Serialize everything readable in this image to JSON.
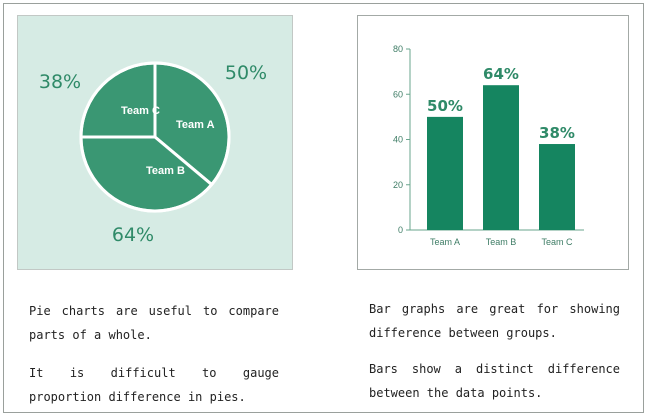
{
  "chart_data": [
    {
      "type": "pie",
      "categories": [
        "Team A",
        "Team B",
        "Team C"
      ],
      "values": [
        50,
        64,
        38
      ],
      "value_labels": [
        "50%",
        "64%",
        "38%"
      ],
      "colors": {
        "slice": "#3a9773",
        "stroke": "#ffffff",
        "value_label": "#2f8a68"
      }
    },
    {
      "type": "bar",
      "categories": [
        "Team A",
        "Team B",
        "Team C"
      ],
      "values": [
        50,
        64,
        38
      ],
      "value_labels": [
        "50%",
        "64%",
        "38%"
      ],
      "ylim": [
        0,
        80
      ],
      "yticks": [
        0,
        20,
        40,
        60,
        80
      ],
      "grid": false,
      "colors": {
        "bar": "#158560",
        "axis": "#6aa58d",
        "value_label": "#2f8a68"
      }
    }
  ],
  "captions": {
    "pie_1": "Pie charts are useful to compare parts of a whole.",
    "pie_2": "It is difficult to gauge proportion difference in pies.",
    "bar_1": "Bar graphs are great for showing difference between groups.",
    "bar_2": "Bars show a distinct difference between the data points."
  }
}
